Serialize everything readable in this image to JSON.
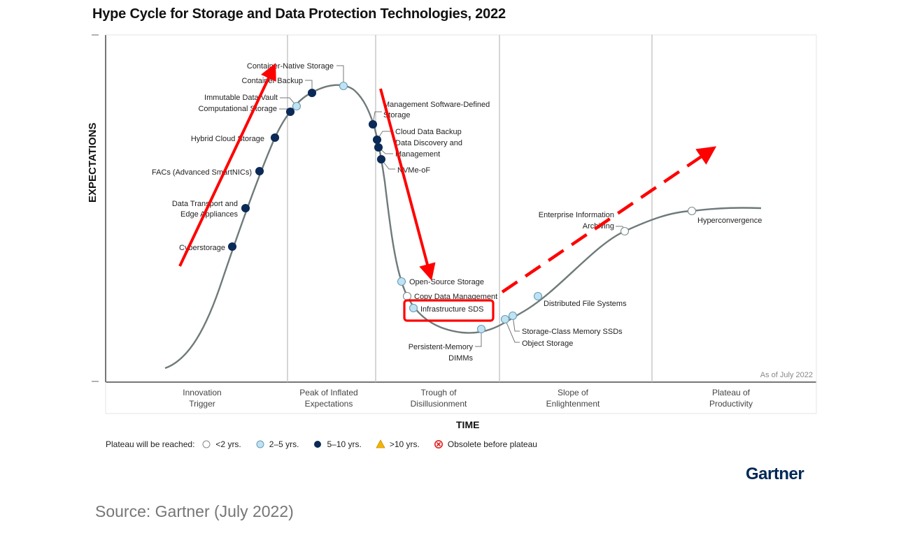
{
  "chart_data": {
    "type": "line",
    "title": "Hype Cycle for Storage and Data Protection Technologies, 2022",
    "xlabel": "TIME",
    "ylabel": "EXPECTATIONS",
    "note": "As of July 2022",
    "phases": [
      {
        "label_line1": "Innovation",
        "label_line2": "Trigger"
      },
      {
        "label_line1": "Peak of Inflated",
        "label_line2": "Expectations"
      },
      {
        "label_line1": "Trough of",
        "label_line2": "Disillusionment"
      },
      {
        "label_line1": "Slope of",
        "label_line2": "Enlightenment"
      },
      {
        "label_line1": "Plateau of",
        "label_line2": "Productivity"
      }
    ],
    "legend_title": "Plateau will be reached:",
    "legend": [
      {
        "key": "lt2",
        "label": "<2 yrs.",
        "color": "#ffffff"
      },
      {
        "key": "2to5",
        "label": "2–5 yrs.",
        "color": "#bfe3f2"
      },
      {
        "key": "5to10",
        "label": "5–10 yrs.",
        "color": "#0b2a57"
      },
      {
        "key": "gt10",
        "label": ">10 yrs.",
        "color": "#f4b400"
      },
      {
        "key": "obsolete",
        "label": "Obsolete before plateau",
        "color": "#e02020"
      }
    ],
    "technologies": [
      {
        "name": "Cyberstorage",
        "phase": "Innovation Trigger",
        "plateau": "5to10"
      },
      {
        "name": "Data Transport and Edge Appliances",
        "phase": "Innovation Trigger",
        "plateau": "5to10"
      },
      {
        "name": "FACs (Advanced SmartNICs)",
        "phase": "Innovation Trigger",
        "plateau": "5to10"
      },
      {
        "name": "Hybrid Cloud Storage",
        "phase": "Innovation Trigger",
        "plateau": "5to10"
      },
      {
        "name": "Computational Storage",
        "phase": "Peak of Inflated Expectations",
        "plateau": "5to10"
      },
      {
        "name": "Immutable Data Vault",
        "phase": "Peak of Inflated Expectations",
        "plateau": "2to5"
      },
      {
        "name": "Container Backup",
        "phase": "Peak of Inflated Expectations",
        "plateau": "5to10"
      },
      {
        "name": "Container-Native Storage",
        "phase": "Peak of Inflated Expectations",
        "plateau": "2to5"
      },
      {
        "name": "Management Software-Defined Storage",
        "phase": "Trough of Disillusionment",
        "plateau": "5to10"
      },
      {
        "name": "Cloud Data Backup",
        "phase": "Trough of Disillusionment",
        "plateau": "5to10"
      },
      {
        "name": "Data Discovery and Management",
        "phase": "Trough of Disillusionment",
        "plateau": "5to10"
      },
      {
        "name": "NVMe-oF",
        "phase": "Trough of Disillusionment",
        "plateau": "5to10"
      },
      {
        "name": "Open-Source Storage",
        "phase": "Trough of Disillusionment",
        "plateau": "2to5"
      },
      {
        "name": "Copy Data Management",
        "phase": "Trough of Disillusionment",
        "plateau": "lt2"
      },
      {
        "name": "Infrastructure SDS",
        "phase": "Trough of Disillusionment",
        "plateau": "2to5",
        "highlighted": true
      },
      {
        "name": "Persistent-Memory DIMMs",
        "phase": "Trough of Disillusionment",
        "plateau": "2to5"
      },
      {
        "name": "Object Storage",
        "phase": "Slope of Enlightenment",
        "plateau": "2to5"
      },
      {
        "name": "Storage-Class Memory SSDs",
        "phase": "Slope of Enlightenment",
        "plateau": "2to5"
      },
      {
        "name": "Distributed File Systems",
        "phase": "Slope of Enlightenment",
        "plateau": "2to5"
      },
      {
        "name": "Enterprise Information Archiving",
        "phase": "Slope of Enlightenment",
        "plateau": "lt2"
      },
      {
        "name": "Hyperconvergence",
        "phase": "Plateau of Productivity",
        "plateau": "lt2"
      }
    ],
    "annotations": [
      {
        "type": "arrow",
        "style": "solid",
        "color": "#ff0000",
        "meaning": "rising through Innovation Trigger"
      },
      {
        "type": "arrow",
        "style": "solid",
        "color": "#ff0000",
        "meaning": "falling into Trough"
      },
      {
        "type": "arrow",
        "style": "dashed",
        "color": "#ff0000",
        "meaning": "rising through Slope"
      },
      {
        "type": "box",
        "color": "#ff0000",
        "target": "Infrastructure SDS"
      }
    ]
  },
  "footer": {
    "logo": "Gartner",
    "source": "Source: Gartner (July 2022)"
  }
}
